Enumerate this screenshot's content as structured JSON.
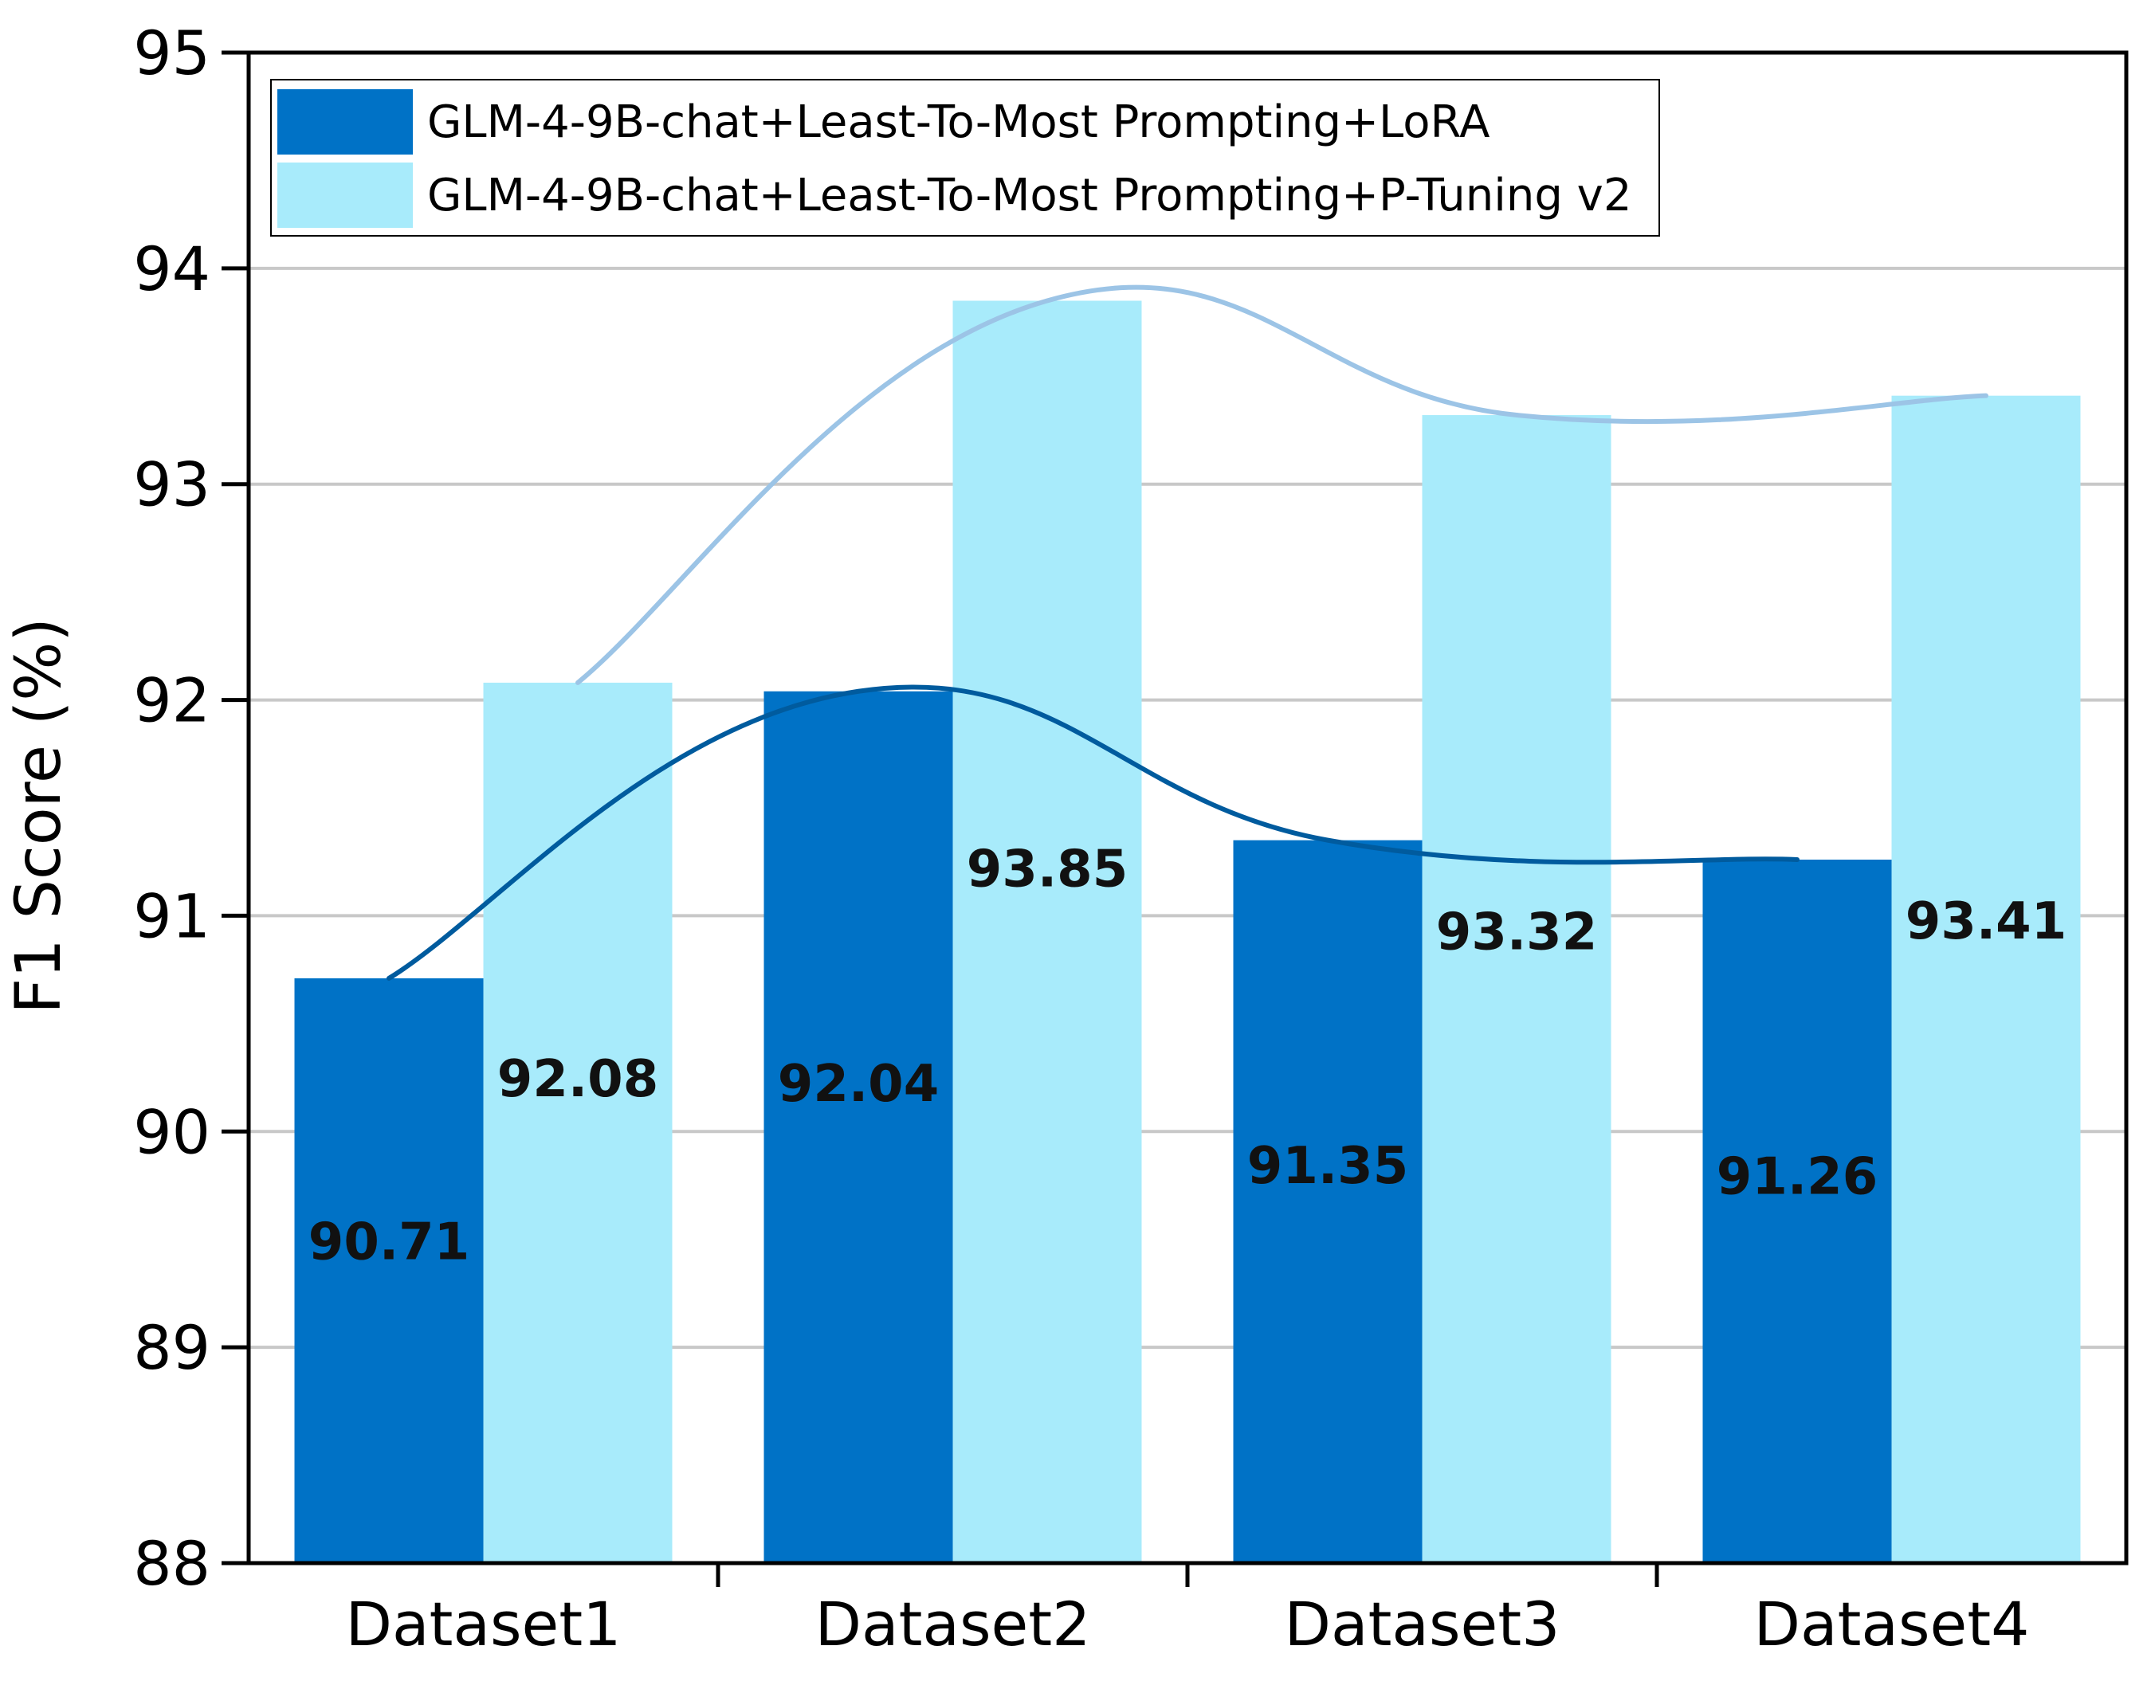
{
  "chart_data": {
    "type": "bar",
    "title": "",
    "xlabel": "",
    "ylabel": "F1 Score (%)",
    "ylim": [
      88,
      95
    ],
    "yticks": [
      88,
      89,
      90,
      91,
      92,
      93,
      94,
      95
    ],
    "grid": true,
    "legend_position": "top-left",
    "categories": [
      "Dataset1",
      "Dataset2",
      "Dataset3",
      "Dataset4"
    ],
    "series": [
      {
        "name": "GLM-4-9B-chat+Least-To-Most Prompting+LoRA",
        "color": "#0072C6",
        "trend_color": "#005B9E",
        "values": [
          90.71,
          92.04,
          91.35,
          91.26
        ],
        "labels": [
          "90.71",
          "92.04",
          "91.35",
          "91.26"
        ]
      },
      {
        "name": "GLM-4-9B-chat+Least-To-Most Prompting+P-Tuning v2",
        "color": "#A8EBFB",
        "trend_color": "#9CC4E6",
        "values": [
          92.08,
          93.85,
          93.32,
          93.41
        ],
        "labels": [
          "92.08",
          "93.85",
          "93.32",
          "93.41"
        ]
      }
    ]
  }
}
